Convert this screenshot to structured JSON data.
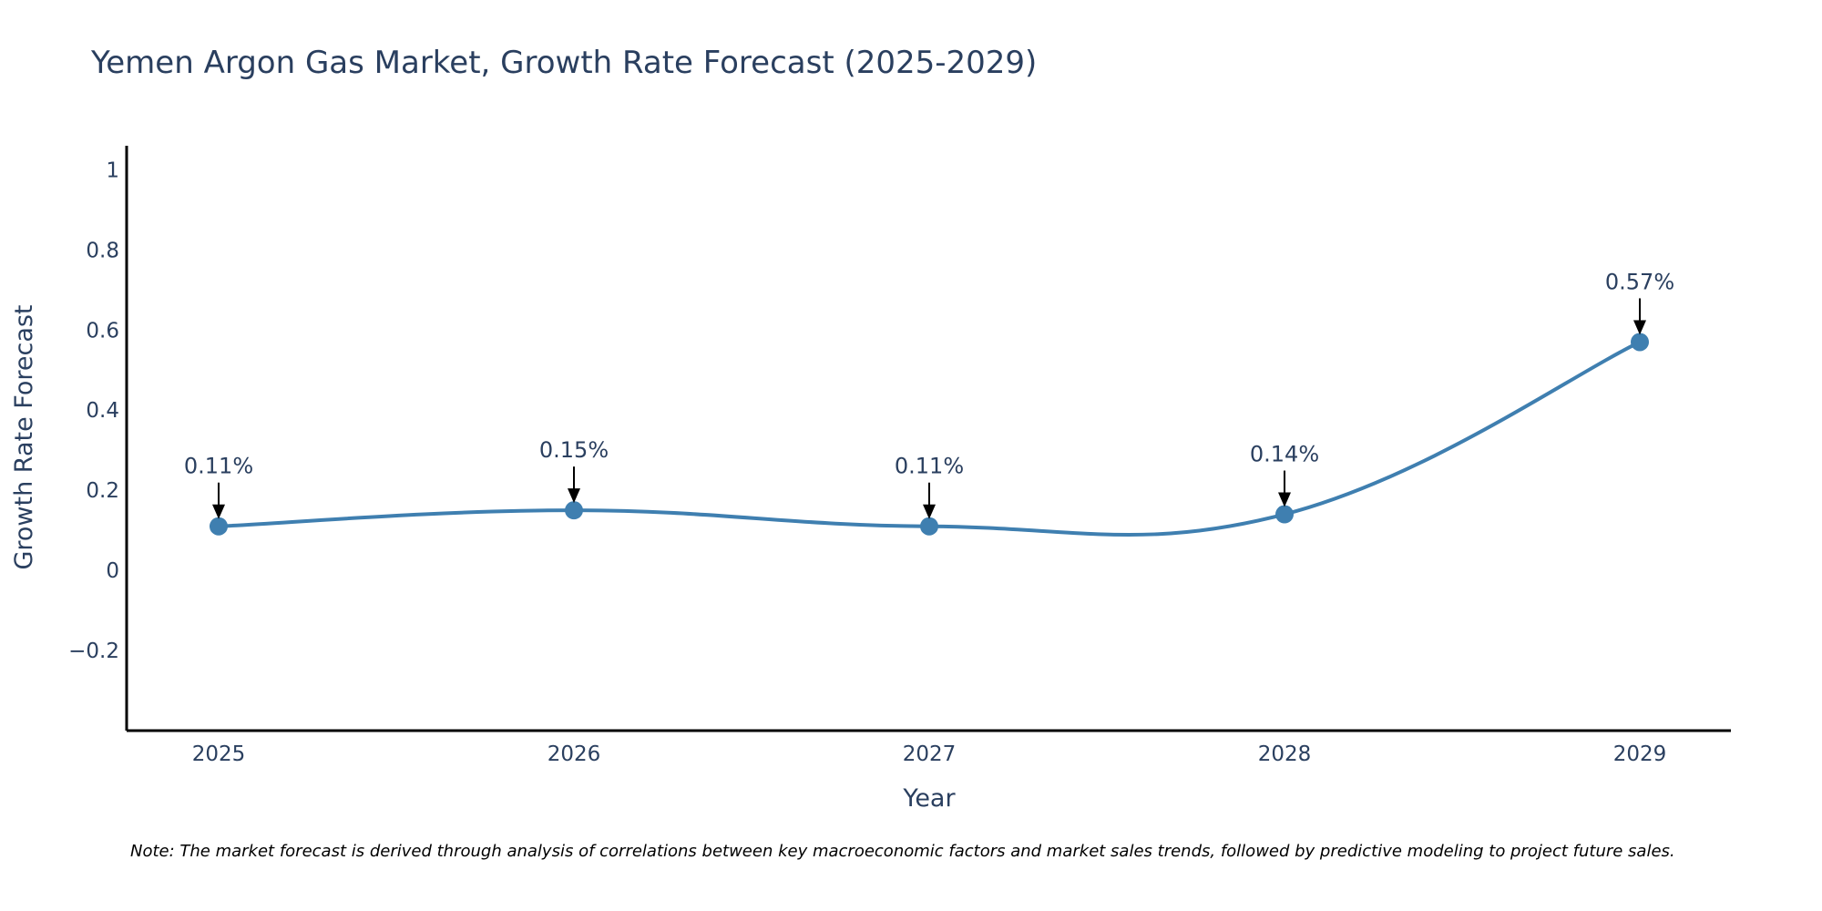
{
  "chart_data": {
    "type": "line",
    "title": "Yemen Argon Gas Market, Growth Rate Forecast (2025-2029)",
    "xlabel": "Year",
    "ylabel": "Growth Rate Forecast",
    "categories": [
      "2025",
      "2026",
      "2027",
      "2028",
      "2029"
    ],
    "series": [
      {
        "name": "Growth Rate Forecast",
        "values": [
          0.11,
          0.15,
          0.11,
          0.14,
          0.57
        ],
        "color": "#3f7fb0"
      }
    ],
    "annotations": [
      "0.11%",
      "0.15%",
      "0.11%",
      "0.14%",
      "0.57%"
    ],
    "ylim": [
      -0.4,
      1.06
    ],
    "yticks": [
      1,
      0.8,
      0.6,
      0.4,
      0.2,
      0,
      -0.2
    ],
    "ytick_labels": [
      "1",
      "0.8",
      "0.6",
      "0.4",
      "0.2",
      "0",
      "−0.2"
    ],
    "grid": false,
    "note": "Note: The market forecast is derived through analysis of correlations between key macroeconomic factors and market sales trends, followed by predictive modeling to project future sales."
  },
  "colors": {
    "line": "#3f7fb0",
    "text": "#2a3f5f",
    "axis": "#000000"
  }
}
